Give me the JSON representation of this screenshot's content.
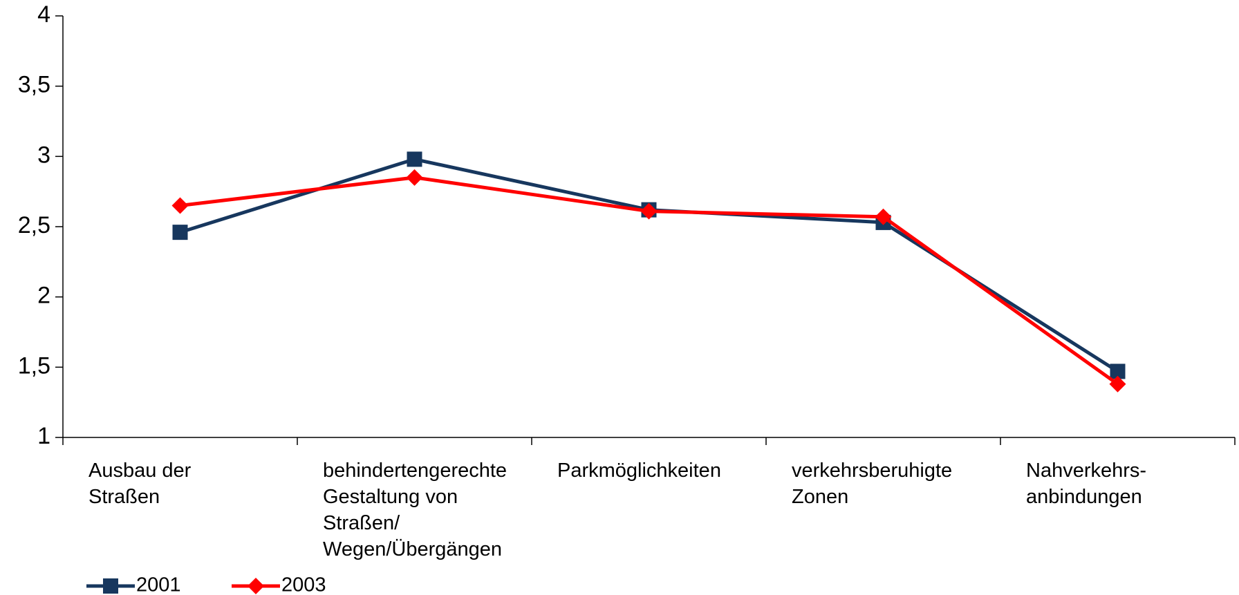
{
  "chart_data": {
    "type": "line",
    "categories": [
      "Ausbau der\nStraßen",
      "behindertengerechte\nGestaltung von\nStraßen/\nWegen/Übergängen",
      "Parkmöglichkeiten",
      "verkehrsberuhigte\nZonen",
      "Nahverkehrs-\nanbindungen"
    ],
    "series": [
      {
        "name": "2001",
        "color": "#17375e",
        "marker": "square",
        "values": [
          2.46,
          2.98,
          2.62,
          2.53,
          1.47
        ]
      },
      {
        "name": "2003",
        "color": "#ff0000",
        "marker": "diamond",
        "values": [
          2.65,
          2.85,
          2.61,
          2.57,
          1.38
        ]
      }
    ],
    "ylim": [
      1,
      4
    ],
    "yticks": [
      1,
      {
        "value": 1.5,
        "label": "1,5"
      },
      2,
      {
        "value": 2.5,
        "label": "2,5"
      },
      3,
      {
        "value": 3.5,
        "label": "3,5"
      },
      4
    ],
    "grid": false,
    "legend": "bottom-left"
  }
}
